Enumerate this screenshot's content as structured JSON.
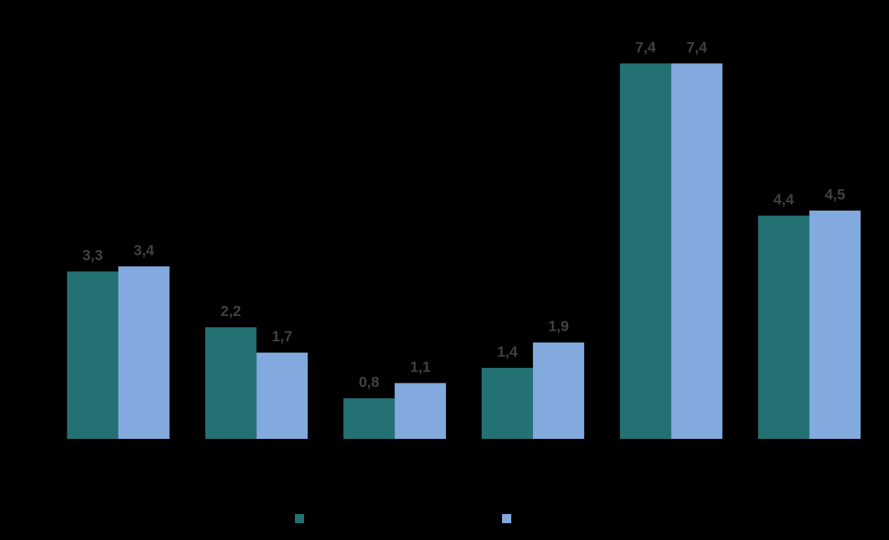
{
  "chart_data": {
    "type": "bar",
    "categories": [
      null,
      null,
      null,
      null,
      null,
      null
    ],
    "series": [
      {
        "color": "#237173",
        "values": [
          3.3,
          2.2,
          0.8,
          1.4,
          7.4,
          4.4
        ],
        "value_labels": [
          "3,3",
          "2,2",
          "0,8",
          "1,4",
          "7,4",
          "4,4"
        ]
      },
      {
        "color": "#82aadf",
        "values": [
          3.4,
          1.7,
          1.1,
          1.9,
          7.4,
          4.5
        ],
        "value_labels": [
          "3,4",
          "1,7",
          "1,1",
          "1,9",
          "7,4",
          "4,5"
        ]
      }
    ],
    "ylim": [
      0,
      8
    ],
    "grid": false
  }
}
